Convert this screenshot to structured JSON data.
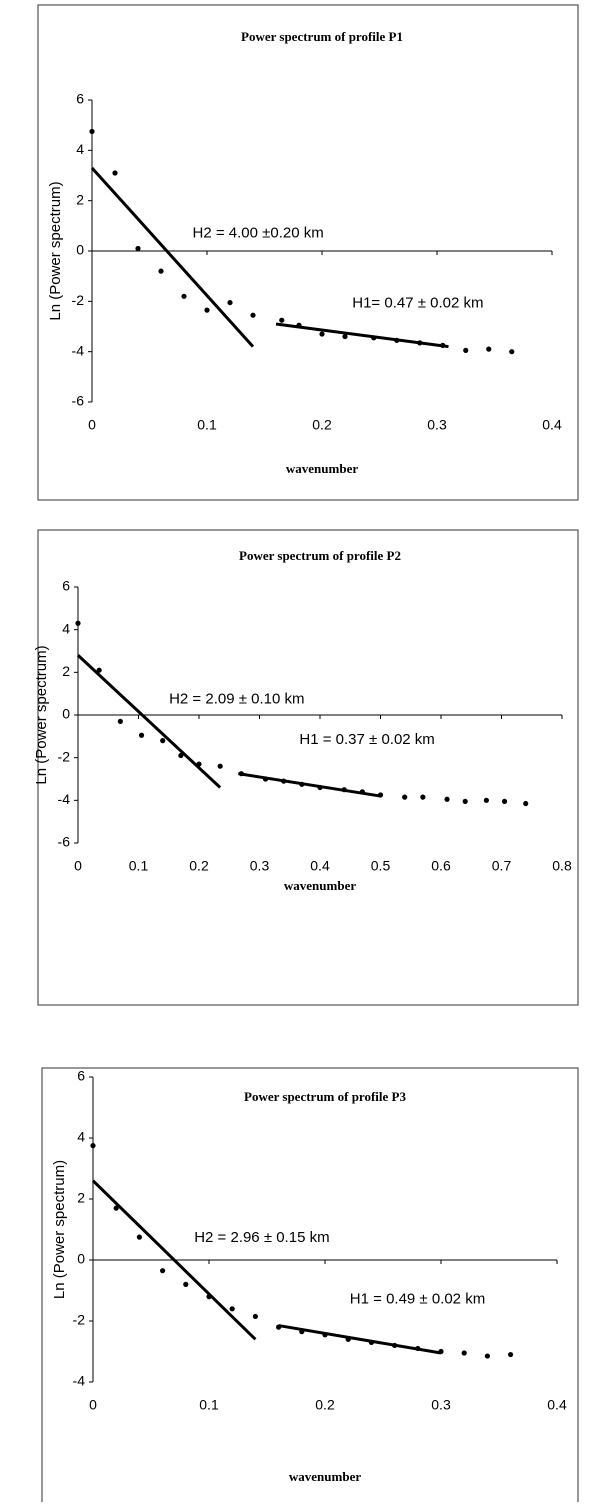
{
  "chart_data": [
    {
      "type": "scatter",
      "title": "Power spectrum of profile P1",
      "x_label": "wavenumber",
      "y_label": "Ln (Power spectrum)",
      "x": [
        0,
        0.02,
        0.04,
        0.06,
        0.08,
        0.1,
        0.12,
        0.14,
        0.165,
        0.18,
        0.2,
        0.22,
        0.245,
        0.265,
        0.285,
        0.305,
        0.325,
        0.345,
        0.365
      ],
      "values": [
        4.75,
        3.1,
        0.1,
        -0.8,
        -1.8,
        -2.35,
        -2.05,
        -2.55,
        -2.75,
        -2.95,
        -3.3,
        -3.4,
        -3.45,
        -3.55,
        -3.65,
        -3.75,
        -3.95,
        -3.9,
        -4.0
      ],
      "fits": [
        {
          "x": [
            0,
            0.14
          ],
          "y": [
            3.3,
            -3.8
          ]
        },
        {
          "x": [
            0.16,
            0.31
          ],
          "y": [
            -2.9,
            -3.8
          ]
        }
      ],
      "annotations": [
        "H2 = 4.00 ±0.20 km",
        "H1= 0.47 ±  0.02 km"
      ],
      "xlim": [
        0,
        0.4
      ],
      "xticks": [
        0,
        0.1,
        0.2,
        0.3,
        0.4
      ],
      "ylim": [
        -6,
        6
      ],
      "yticks": [
        6,
        4,
        2,
        0,
        -2,
        -4,
        -6
      ],
      "color": "#000000"
    },
    {
      "type": "scatter",
      "title": "Power spectrum of profile P2",
      "x_label": "wavenumber",
      "y_label": "Ln (Power spectrum)",
      "x": [
        0,
        0.035,
        0.07,
        0.105,
        0.14,
        0.17,
        0.2,
        0.235,
        0.27,
        0.31,
        0.34,
        0.37,
        0.4,
        0.44,
        0.47,
        0.5,
        0.54,
        0.57,
        0.61,
        0.64,
        0.675,
        0.705,
        0.74
      ],
      "values": [
        4.3,
        2.1,
        -0.3,
        -0.95,
        -1.2,
        -1.9,
        -2.3,
        -2.4,
        -2.75,
        -3.0,
        -3.1,
        -3.25,
        -3.4,
        -3.5,
        -3.6,
        -3.75,
        -3.85,
        -3.85,
        -3.95,
        -4.05,
        -4.0,
        -4.05,
        -4.15
      ],
      "fits": [
        {
          "x": [
            0,
            0.235
          ],
          "y": [
            2.8,
            -3.4
          ]
        },
        {
          "x": [
            0.265,
            0.5
          ],
          "y": [
            -2.75,
            -3.8
          ]
        }
      ],
      "annotations": [
        "H2 = 2.09 ±  0.10 km",
        "H1 = 0.37 ± 0.02 km"
      ],
      "xlim": [
        0,
        0.8
      ],
      "xticks": [
        0,
        0.1,
        0.2,
        0.3,
        0.4,
        0.5,
        0.6,
        0.7,
        0.8
      ],
      "ylim": [
        -6,
        6
      ],
      "yticks": [
        6,
        4,
        2,
        0,
        -2,
        -4,
        -6
      ],
      "color": "#000000"
    },
    {
      "type": "scatter",
      "title": "Power spectrum of profile P3",
      "x_label": "wavenumber",
      "y_label": "Ln (Power spectrum)",
      "x": [
        0,
        0.02,
        0.04,
        0.06,
        0.08,
        0.1,
        0.12,
        0.14,
        0.16,
        0.18,
        0.2,
        0.22,
        0.24,
        0.26,
        0.28,
        0.3,
        0.32,
        0.34,
        0.36
      ],
      "values": [
        3.75,
        1.7,
        0.75,
        -0.35,
        -0.8,
        -1.2,
        -1.6,
        -1.85,
        -2.2,
        -2.35,
        -2.45,
        -2.6,
        -2.7,
        -2.8,
        -2.9,
        -3.0,
        -3.05,
        -3.15,
        -3.1
      ],
      "fits": [
        {
          "x": [
            0,
            0.14
          ],
          "y": [
            2.6,
            -2.6
          ]
        },
        {
          "x": [
            0.16,
            0.3
          ],
          "y": [
            -2.15,
            -3.05
          ]
        }
      ],
      "annotations": [
        "H2 = 2.96 ± 0.15 km",
        "H1 = 0.49 ± 0.02 km"
      ],
      "xlim": [
        0,
        0.4
      ],
      "xticks": [
        0,
        0.1,
        0.2,
        0.3,
        0.4
      ],
      "ylim": [
        -4,
        6
      ],
      "yticks": [
        6,
        4,
        2,
        0,
        -2,
        -4
      ],
      "color": "#000000"
    }
  ]
}
